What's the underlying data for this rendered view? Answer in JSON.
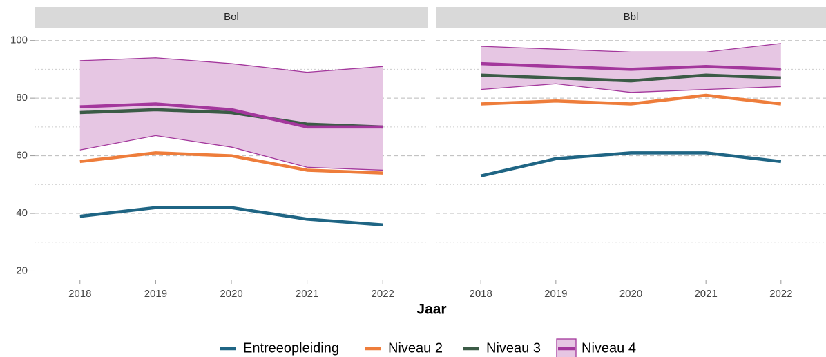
{
  "chart_data": {
    "type": "line",
    "x_label": "Jaar",
    "x": [
      2018,
      2019,
      2020,
      2021,
      2022
    ],
    "xlim": [
      2017.4,
      2022.6
    ],
    "ylim": [
      17,
      104
    ],
    "yticks": [
      20,
      40,
      60,
      80,
      100
    ],
    "yminor": [
      30,
      50,
      70,
      90
    ],
    "grid": true,
    "legend": "bottom",
    "band_color": "#e6c6e3",
    "band_series": 3,
    "series": [
      {
        "name": "Entreeopleiding",
        "color": "#1f6584"
      },
      {
        "name": "Niveau 2",
        "color": "#ee7d3b"
      },
      {
        "name": "Niveau 3",
        "color": "#3b5b46"
      },
      {
        "name": "Niveau 4",
        "color": "#a3379c"
      }
    ],
    "facets": [
      {
        "title": "Bol",
        "series": [
          {
            "values": [
              39,
              42,
              42,
              38,
              36
            ]
          },
          {
            "values": [
              58,
              61,
              60,
              55,
              54
            ]
          },
          {
            "values": [
              75,
              76,
              75,
              71,
              70
            ]
          },
          {
            "values": [
              77,
              78,
              76,
              70,
              70
            ]
          }
        ],
        "band": {
          "lower": [
            62,
            67,
            63,
            56,
            55
          ],
          "upper": [
            93,
            94,
            92,
            89,
            91
          ]
        }
      },
      {
        "title": "Bbl",
        "series": [
          {
            "values": [
              53,
              59,
              61,
              61,
              58
            ]
          },
          {
            "values": [
              78,
              79,
              78,
              81,
              78
            ]
          },
          {
            "values": [
              88,
              87,
              86,
              88,
              87
            ]
          },
          {
            "values": [
              92,
              91,
              90,
              91,
              90
            ]
          }
        ],
        "band": {
          "lower": [
            83,
            85,
            82,
            83,
            84
          ],
          "upper": [
            98,
            97,
            96,
            96,
            99
          ]
        }
      }
    ]
  }
}
